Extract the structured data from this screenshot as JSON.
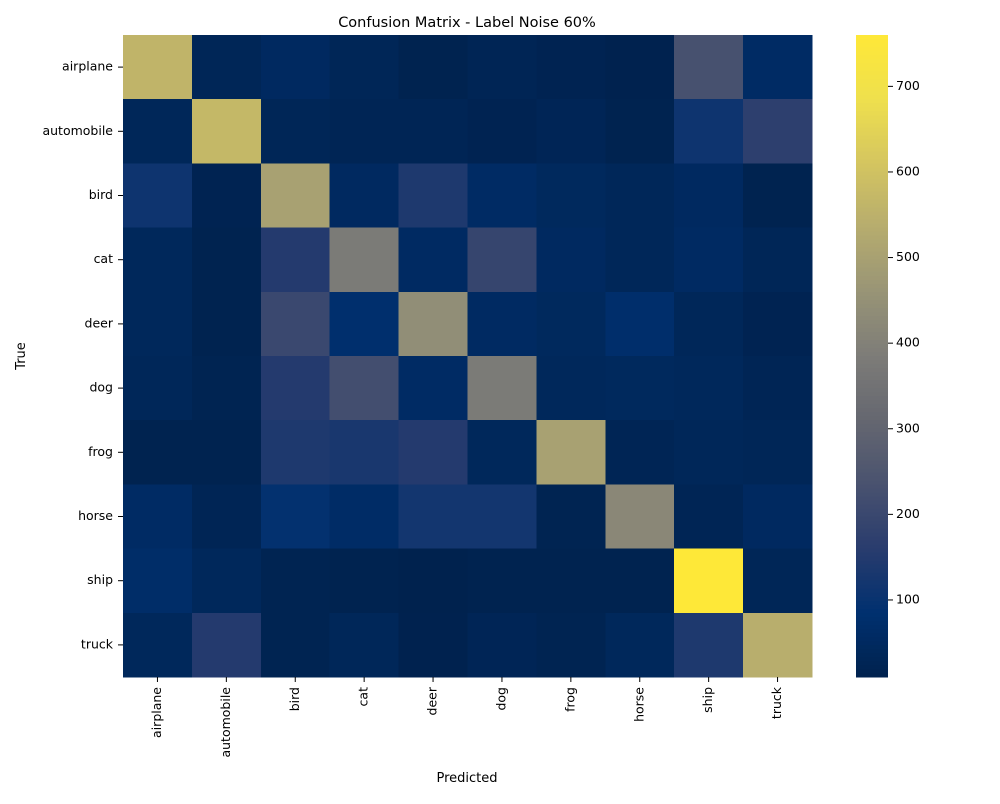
{
  "chart_data": {
    "type": "heatmap",
    "title": "Confusion Matrix - Label Noise 60%",
    "xlabel": "Predicted",
    "ylabel": "True",
    "x_categories": [
      "airplane",
      "automobile",
      "bird",
      "cat",
      "deer",
      "dog",
      "frog",
      "horse",
      "ship",
      "truck"
    ],
    "y_categories": [
      "airplane",
      "automobile",
      "bird",
      "cat",
      "deer",
      "dog",
      "frog",
      "horse",
      "ship",
      "truck"
    ],
    "values": [
      [
        560,
        30,
        50,
        30,
        15,
        25,
        18,
        12,
        230,
        60
      ],
      [
        35,
        570,
        30,
        25,
        25,
        18,
        28,
        15,
        110,
        170
      ],
      [
        110,
        18,
        500,
        50,
        140,
        60,
        45,
        35,
        50,
        15
      ],
      [
        40,
        15,
        150,
        380,
        55,
        190,
        50,
        35,
        55,
        30
      ],
      [
        40,
        15,
        200,
        80,
        440,
        55,
        45,
        75,
        35,
        18
      ],
      [
        35,
        20,
        150,
        220,
        60,
        380,
        40,
        45,
        40,
        25
      ],
      [
        15,
        15,
        140,
        130,
        150,
        40,
        500,
        25,
        35,
        30
      ],
      [
        60,
        25,
        90,
        65,
        120,
        120,
        20,
        420,
        25,
        50
      ],
      [
        70,
        40,
        20,
        15,
        10,
        15,
        15,
        15,
        760,
        30
      ],
      [
        40,
        150,
        20,
        35,
        12,
        28,
        20,
        40,
        140,
        540
      ]
    ],
    "colormap": "cividis",
    "colorbar": {
      "min": 10,
      "max": 760,
      "ticks": [
        100,
        200,
        300,
        400,
        500,
        600,
        700
      ]
    },
    "grid": false,
    "legend": "colorbar-right"
  }
}
